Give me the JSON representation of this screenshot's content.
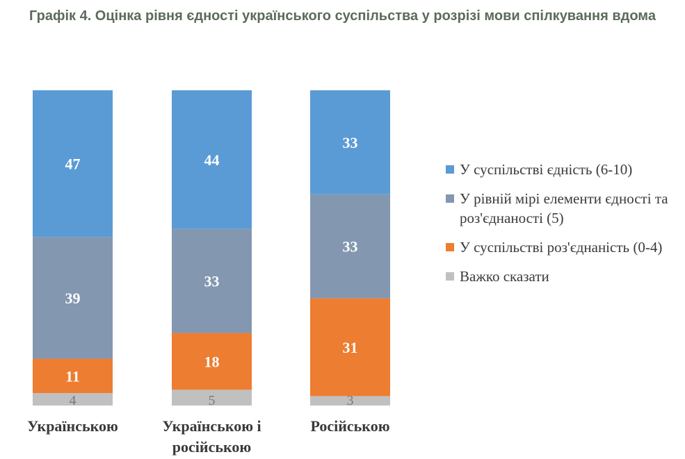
{
  "chart_data": {
    "type": "bar",
    "stacked": true,
    "title": "Графік 4. Оцінка рівня єдності українського суспільства у розрізі мови спілкування вдома",
    "categories": [
      [
        "Українською"
      ],
      [
        "Українською і",
        "російською"
      ],
      [
        "Російською"
      ]
    ],
    "series": [
      {
        "name": "У суспільстві єдність (6-10)",
        "color": "#5b9bd5",
        "values": [
          47,
          44,
          33
        ]
      },
      {
        "name": "У рівній мірі елементи єдності та роз'єднаності (5)",
        "color": "#8497b0",
        "values": [
          39,
          33,
          33
        ]
      },
      {
        "name": "У суспільстві роз'єднаність (0-4)",
        "color": "#ed7d31",
        "values": [
          11,
          18,
          31
        ]
      },
      {
        "name": "Важко сказати",
        "color": "#c0c0c0",
        "values": [
          4,
          5,
          3
        ]
      }
    ],
    "legend": "right",
    "grid": false
  }
}
